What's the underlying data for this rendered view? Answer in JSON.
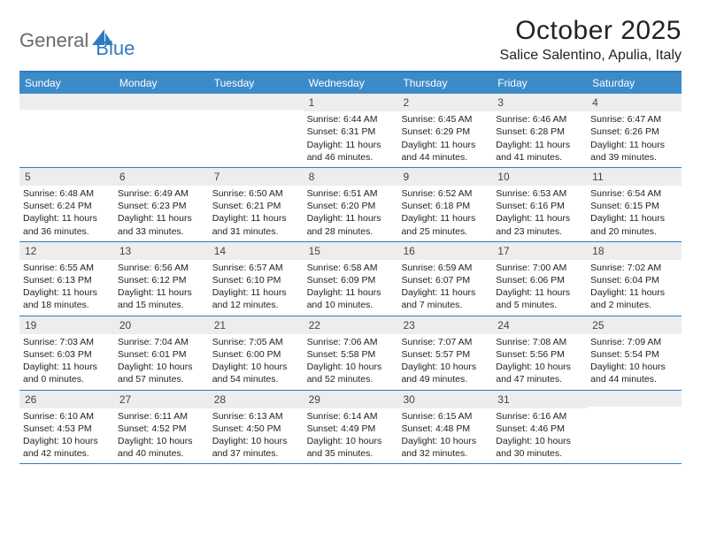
{
  "logo": {
    "part1": "General",
    "part2": "Blue"
  },
  "title": "October 2025",
  "location": "Salice Salentino, Apulia, Italy",
  "colors": {
    "header_bg": "#3c8bc9",
    "border": "#2f7bbf",
    "daynum_bg": "#ededed",
    "text": "#222222",
    "white": "#ffffff"
  },
  "days_of_week": [
    "Sunday",
    "Monday",
    "Tuesday",
    "Wednesday",
    "Thursday",
    "Friday",
    "Saturday"
  ],
  "label_sunrise": "Sunrise: ",
  "label_sunset": "Sunset: ",
  "label_daylight": "Daylight: ",
  "weeks": [
    [
      null,
      null,
      null,
      {
        "n": "1",
        "sr": "6:44 AM",
        "ss": "6:31 PM",
        "dl": "11 hours and 46 minutes."
      },
      {
        "n": "2",
        "sr": "6:45 AM",
        "ss": "6:29 PM",
        "dl": "11 hours and 44 minutes."
      },
      {
        "n": "3",
        "sr": "6:46 AM",
        "ss": "6:28 PM",
        "dl": "11 hours and 41 minutes."
      },
      {
        "n": "4",
        "sr": "6:47 AM",
        "ss": "6:26 PM",
        "dl": "11 hours and 39 minutes."
      }
    ],
    [
      {
        "n": "5",
        "sr": "6:48 AM",
        "ss": "6:24 PM",
        "dl": "11 hours and 36 minutes."
      },
      {
        "n": "6",
        "sr": "6:49 AM",
        "ss": "6:23 PM",
        "dl": "11 hours and 33 minutes."
      },
      {
        "n": "7",
        "sr": "6:50 AM",
        "ss": "6:21 PM",
        "dl": "11 hours and 31 minutes."
      },
      {
        "n": "8",
        "sr": "6:51 AM",
        "ss": "6:20 PM",
        "dl": "11 hours and 28 minutes."
      },
      {
        "n": "9",
        "sr": "6:52 AM",
        "ss": "6:18 PM",
        "dl": "11 hours and 25 minutes."
      },
      {
        "n": "10",
        "sr": "6:53 AM",
        "ss": "6:16 PM",
        "dl": "11 hours and 23 minutes."
      },
      {
        "n": "11",
        "sr": "6:54 AM",
        "ss": "6:15 PM",
        "dl": "11 hours and 20 minutes."
      }
    ],
    [
      {
        "n": "12",
        "sr": "6:55 AM",
        "ss": "6:13 PM",
        "dl": "11 hours and 18 minutes."
      },
      {
        "n": "13",
        "sr": "6:56 AM",
        "ss": "6:12 PM",
        "dl": "11 hours and 15 minutes."
      },
      {
        "n": "14",
        "sr": "6:57 AM",
        "ss": "6:10 PM",
        "dl": "11 hours and 12 minutes."
      },
      {
        "n": "15",
        "sr": "6:58 AM",
        "ss": "6:09 PM",
        "dl": "11 hours and 10 minutes."
      },
      {
        "n": "16",
        "sr": "6:59 AM",
        "ss": "6:07 PM",
        "dl": "11 hours and 7 minutes."
      },
      {
        "n": "17",
        "sr": "7:00 AM",
        "ss": "6:06 PM",
        "dl": "11 hours and 5 minutes."
      },
      {
        "n": "18",
        "sr": "7:02 AM",
        "ss": "6:04 PM",
        "dl": "11 hours and 2 minutes."
      }
    ],
    [
      {
        "n": "19",
        "sr": "7:03 AM",
        "ss": "6:03 PM",
        "dl": "11 hours and 0 minutes."
      },
      {
        "n": "20",
        "sr": "7:04 AM",
        "ss": "6:01 PM",
        "dl": "10 hours and 57 minutes."
      },
      {
        "n": "21",
        "sr": "7:05 AM",
        "ss": "6:00 PM",
        "dl": "10 hours and 54 minutes."
      },
      {
        "n": "22",
        "sr": "7:06 AM",
        "ss": "5:58 PM",
        "dl": "10 hours and 52 minutes."
      },
      {
        "n": "23",
        "sr": "7:07 AM",
        "ss": "5:57 PM",
        "dl": "10 hours and 49 minutes."
      },
      {
        "n": "24",
        "sr": "7:08 AM",
        "ss": "5:56 PM",
        "dl": "10 hours and 47 minutes."
      },
      {
        "n": "25",
        "sr": "7:09 AM",
        "ss": "5:54 PM",
        "dl": "10 hours and 44 minutes."
      }
    ],
    [
      {
        "n": "26",
        "sr": "6:10 AM",
        "ss": "4:53 PM",
        "dl": "10 hours and 42 minutes."
      },
      {
        "n": "27",
        "sr": "6:11 AM",
        "ss": "4:52 PM",
        "dl": "10 hours and 40 minutes."
      },
      {
        "n": "28",
        "sr": "6:13 AM",
        "ss": "4:50 PM",
        "dl": "10 hours and 37 minutes."
      },
      {
        "n": "29",
        "sr": "6:14 AM",
        "ss": "4:49 PM",
        "dl": "10 hours and 35 minutes."
      },
      {
        "n": "30",
        "sr": "6:15 AM",
        "ss": "4:48 PM",
        "dl": "10 hours and 32 minutes."
      },
      {
        "n": "31",
        "sr": "6:16 AM",
        "ss": "4:46 PM",
        "dl": "10 hours and 30 minutes."
      },
      null
    ]
  ]
}
